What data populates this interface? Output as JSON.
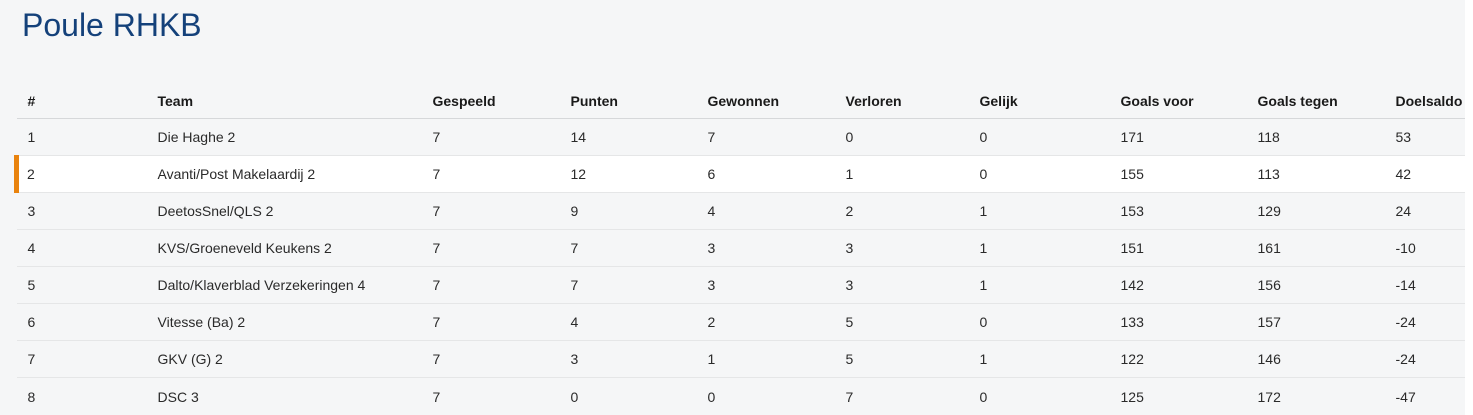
{
  "page": {
    "title": "Poule RHKB"
  },
  "colors": {
    "title": "#14417a",
    "accent_orange": "#e9830e",
    "page_background": "#f5f6f7",
    "highlight_background": "#ffffff"
  },
  "table": {
    "columns": [
      "#",
      "Team",
      "Gespeeld",
      "Punten",
      "Gewonnen",
      "Verloren",
      "Gelijk",
      "Goals voor",
      "Goals tegen",
      "Doelsaldo"
    ],
    "rows": [
      {
        "rank": "1",
        "team": "Die Haghe 2",
        "gespeeld": "7",
        "punten": "14",
        "gewonnen": "7",
        "verloren": "0",
        "gelijk": "0",
        "goals_voor": "171",
        "goals_tegen": "118",
        "doelsaldo": "53",
        "highlighted": false
      },
      {
        "rank": "2",
        "team": "Avanti/Post Makelaardij 2",
        "gespeeld": "7",
        "punten": "12",
        "gewonnen": "6",
        "verloren": "1",
        "gelijk": "0",
        "goals_voor": "155",
        "goals_tegen": "113",
        "doelsaldo": "42",
        "highlighted": true
      },
      {
        "rank": "3",
        "team": "DeetosSnel/QLS 2",
        "gespeeld": "7",
        "punten": "9",
        "gewonnen": "4",
        "verloren": "2",
        "gelijk": "1",
        "goals_voor": "153",
        "goals_tegen": "129",
        "doelsaldo": "24",
        "highlighted": false
      },
      {
        "rank": "4",
        "team": "KVS/Groeneveld Keukens 2",
        "gespeeld": "7",
        "punten": "7",
        "gewonnen": "3",
        "verloren": "3",
        "gelijk": "1",
        "goals_voor": "151",
        "goals_tegen": "161",
        "doelsaldo": "-10",
        "highlighted": false
      },
      {
        "rank": "5",
        "team": "Dalto/Klaverblad Verzekeringen 4",
        "gespeeld": "7",
        "punten": "7",
        "gewonnen": "3",
        "verloren": "3",
        "gelijk": "1",
        "goals_voor": "142",
        "goals_tegen": "156",
        "doelsaldo": "-14",
        "highlighted": false
      },
      {
        "rank": "6",
        "team": "Vitesse (Ba) 2",
        "gespeeld": "7",
        "punten": "4",
        "gewonnen": "2",
        "verloren": "5",
        "gelijk": "0",
        "goals_voor": "133",
        "goals_tegen": "157",
        "doelsaldo": "-24",
        "highlighted": false
      },
      {
        "rank": "7",
        "team": "GKV (G) 2",
        "gespeeld": "7",
        "punten": "3",
        "gewonnen": "1",
        "verloren": "5",
        "gelijk": "1",
        "goals_voor": "122",
        "goals_tegen": "146",
        "doelsaldo": "-24",
        "highlighted": false
      },
      {
        "rank": "8",
        "team": "DSC 3",
        "gespeeld": "7",
        "punten": "0",
        "gewonnen": "0",
        "verloren": "7",
        "gelijk": "0",
        "goals_voor": "125",
        "goals_tegen": "172",
        "doelsaldo": "-47",
        "highlighted": false
      }
    ]
  }
}
